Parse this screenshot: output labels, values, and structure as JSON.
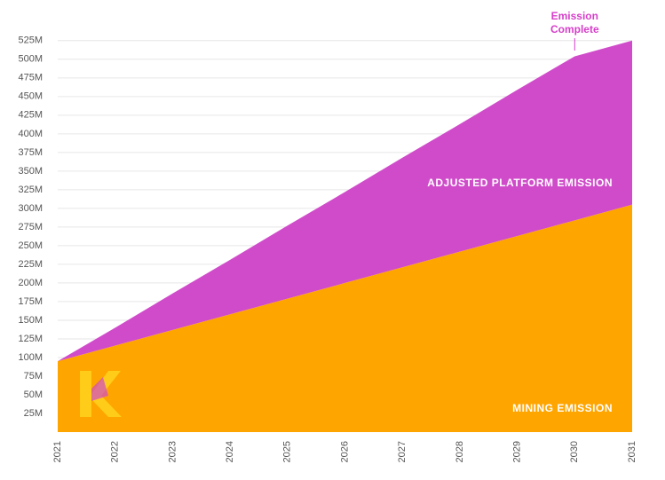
{
  "chart_data": {
    "type": "stacked_area",
    "categories": [
      "2021",
      "2022",
      "2023",
      "2024",
      "2025",
      "2026",
      "2027",
      "2028",
      "2029",
      "2030",
      "2031"
    ],
    "series": [
      {
        "name": "MINING EMISSION",
        "color": "#ffa500",
        "values": [
          95,
          116,
          137,
          158,
          179,
          200,
          221,
          242,
          263,
          284,
          305
        ]
      },
      {
        "name": "ADJUSTED PLATFORM EMISSION",
        "color": "#d04bca",
        "values": [
          0,
          24,
          49,
          73,
          98,
          122,
          147,
          171,
          196,
          220,
          220
        ]
      }
    ],
    "ylim": [
      0,
      530
    ],
    "yticks": [
      {
        "value": 25,
        "label": "25M"
      },
      {
        "value": 50,
        "label": "50M"
      },
      {
        "value": 75,
        "label": "75M"
      },
      {
        "value": 100,
        "label": "100M"
      },
      {
        "value": 125,
        "label": "125M"
      },
      {
        "value": 150,
        "label": "150M"
      },
      {
        "value": 175,
        "label": "175M"
      },
      {
        "value": 200,
        "label": "200M"
      },
      {
        "value": 225,
        "label": "225M"
      },
      {
        "value": 250,
        "label": "250M"
      },
      {
        "value": 275,
        "label": "275M"
      },
      {
        "value": 300,
        "label": "300M"
      },
      {
        "value": 325,
        "label": "325M"
      },
      {
        "value": 350,
        "label": "350M"
      },
      {
        "value": 375,
        "label": "375M"
      },
      {
        "value": 400,
        "label": "400M"
      },
      {
        "value": 425,
        "label": "425M"
      },
      {
        "value": 450,
        "label": "450M"
      },
      {
        "value": 475,
        "label": "475M"
      },
      {
        "value": 500,
        "label": "500M"
      },
      {
        "value": 525,
        "label": "525M"
      }
    ],
    "grid": true,
    "annotation": {
      "lines": [
        "Emission",
        "Complete"
      ],
      "category": 9,
      "color": "#d63fc9"
    }
  }
}
